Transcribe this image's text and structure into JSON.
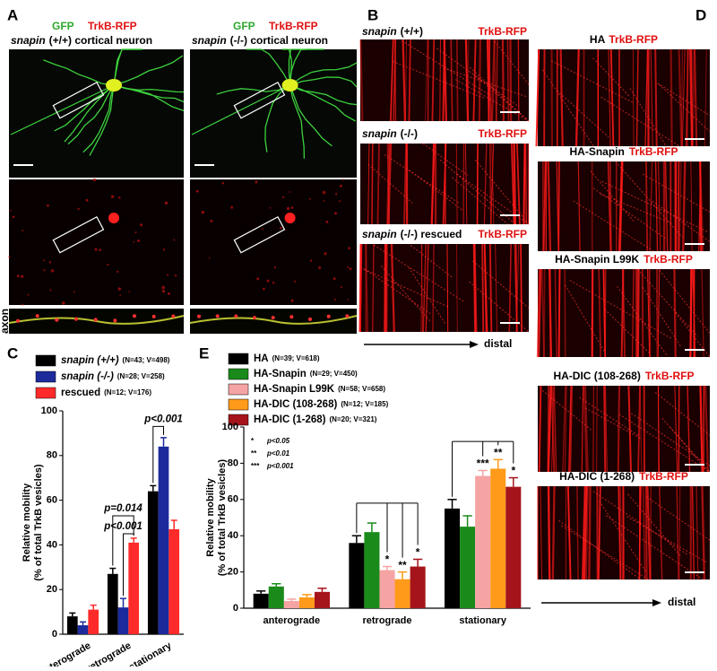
{
  "panels": {
    "A": {
      "letter": "A",
      "left": {
        "stain1": "GFP",
        "stain2": "TrkB-RFP",
        "gene": "snapin",
        "rest": "(+/+) cortical neuron"
      },
      "right": {
        "stain1": "GFP",
        "stain2": "TrkB-RFP",
        "gene": "snapin",
        "rest": "(-/-) cortical neuron"
      },
      "axon_label": "axon"
    },
    "B": {
      "letter": "B",
      "rows": [
        {
          "gene": "snapin",
          "rest": "(+/+)",
          "marker": "TrkB-RFP"
        },
        {
          "gene": "snapin",
          "rest": "(-/-)",
          "marker": "TrkB-RFP"
        },
        {
          "gene": "snapin",
          "rest": "(-/-) rescued",
          "marker": "TrkB-RFP"
        }
      ],
      "direction": "distal"
    },
    "D": {
      "letter": "D",
      "rows": [
        {
          "name": "HA",
          "marker": "TrkB-RFP"
        },
        {
          "name": "HA-Snapin",
          "marker": "TrkB-RFP"
        },
        {
          "name": "HA-Snapin L99K",
          "marker": "TrkB-RFP"
        },
        {
          "name": "HA-DIC (108-268)",
          "marker": "TrkB-RFP"
        },
        {
          "name": "HA-DIC (1-268)",
          "marker": "TrkB-RFP"
        }
      ],
      "direction": "distal"
    }
  },
  "chart_data": [
    {
      "type": "bar",
      "letter": "C",
      "y_label": [
        "Relative mobility",
        "(% of total TrkB vesicles)"
      ],
      "categories": [
        "anterograde",
        "retrograde",
        "stationary"
      ],
      "ylim": [
        0,
        100
      ],
      "yticks": [
        0,
        20,
        40,
        60,
        80,
        100
      ],
      "series": [
        {
          "name": "snapin (+/+)",
          "detail": "(N=43; V=498)",
          "color": "#000000",
          "values": [
            8,
            27,
            64
          ],
          "errors": [
            1.5,
            2.5,
            2.5
          ]
        },
        {
          "name": "snapin (-/-)",
          "detail": "(N=28; V=258)",
          "color": "#1c2a9c",
          "values": [
            4,
            12,
            84
          ],
          "errors": [
            1.5,
            4,
            4
          ]
        },
        {
          "name": "rescued",
          "detail": "(N=12; V=176)",
          "color": "#ff2a2a",
          "values": [
            11,
            41,
            47
          ],
          "errors": [
            2,
            2,
            4
          ]
        }
      ],
      "annotations": [
        "p=0.014",
        "p<0.001",
        "p<0.001"
      ]
    },
    {
      "type": "bar",
      "letter": "E",
      "y_label": [
        "Relative mobility",
        "(% of total TrkB vesicles)"
      ],
      "categories": [
        "anterograde",
        "retrograde",
        "stationary"
      ],
      "ylim": [
        0,
        100
      ],
      "yticks": [
        0,
        20,
        40,
        60,
        80,
        100
      ],
      "series": [
        {
          "name": "HA",
          "detail": "(N=39; V=618)",
          "color": "#000000",
          "values": [
            8,
            36,
            55
          ],
          "errors": [
            1.5,
            4,
            5
          ],
          "significance": [
            null,
            null,
            null
          ]
        },
        {
          "name": "HA-Snapin",
          "detail": "(N=29; V=450)",
          "color": "#1a8a1a",
          "values": [
            12,
            42,
            45
          ],
          "errors": [
            1.5,
            5,
            6
          ],
          "significance": [
            null,
            null,
            null
          ]
        },
        {
          "name": "HA-Snapin L99K",
          "detail": "(N=58; V=658)",
          "color": "#f5a3a3",
          "values": [
            4,
            21,
            73
          ],
          "errors": [
            1,
            2,
            3
          ],
          "significance": [
            null,
            "*",
            "***"
          ]
        },
        {
          "name": "HA-DIC (108-268)",
          "detail": "(N=12; V=185)",
          "color": "#ff9a1a",
          "values": [
            6,
            16,
            77
          ],
          "errors": [
            1.5,
            4,
            5
          ],
          "significance": [
            null,
            "**",
            "**"
          ]
        },
        {
          "name": "HA-DIC (1-268)",
          "detail": "(N=20; V=321)",
          "color": "#a5141a",
          "values": [
            9,
            23,
            67
          ],
          "errors": [
            2,
            4,
            5
          ],
          "significance": [
            null,
            "*",
            "*"
          ]
        }
      ],
      "significance_legend": [
        {
          "stars": "*",
          "text": "p<0.05"
        },
        {
          "stars": "**",
          "text": "p<0.01"
        },
        {
          "stars": "***",
          "text": "p<0.001"
        }
      ]
    }
  ]
}
